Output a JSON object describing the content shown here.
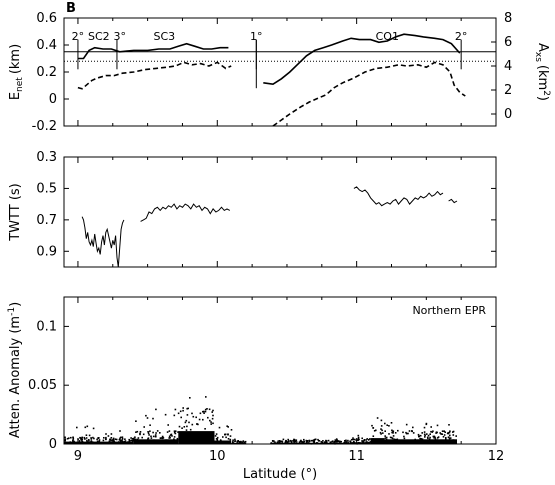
{
  "figure": {
    "panel_letter": "B",
    "xlabel": "Latitude (°)",
    "x_ticks": [
      "9",
      "10",
      "11",
      "12"
    ],
    "xlim": [
      8.9,
      12.0
    ]
  },
  "chart_data": [
    {
      "type": "line",
      "panel": "top",
      "ylabel_left_main": "E",
      "ylabel_left_sub": "net",
      "ylabel_left_unit": "(km)",
      "ylabel_right_main": "A",
      "ylabel_right_sub": "xs",
      "ylabel_right_unit": "(km",
      "ylabel_right_sup": "2",
      "ylabel_right_close": ")",
      "ylim_left": [
        -0.2,
        0.6
      ],
      "ylim_right": [
        -1,
        8
      ],
      "yticks_left": [
        "0.6",
        "0.4",
        "0.2",
        "0",
        "-0.2"
      ],
      "yticks_right": [
        "8",
        "6",
        "4",
        "2",
        "0"
      ],
      "reference_solid_left": 0.35,
      "reference_dotted_left": 0.28,
      "annotations": [
        {
          "text": "2°",
          "lat": 9.0
        },
        {
          "text": "SC2",
          "lat": 9.15
        },
        {
          "text": "3°",
          "lat": 9.3
        },
        {
          "text": "SC3",
          "lat": 9.62
        },
        {
          "text": "1°",
          "lat": 10.28
        },
        {
          "text": "CO1",
          "lat": 11.22
        },
        {
          "text": "2°",
          "lat": 11.75
        }
      ],
      "discontinuities": [
        9.0,
        9.28,
        10.28,
        11.75
      ],
      "series": [
        {
          "axis": "left",
          "style": "solid",
          "segments": [
            {
              "x": [
                9.0,
                9.04,
                9.08,
                9.12,
                9.18,
                9.24,
                9.3,
                9.4,
                9.5,
                9.58,
                9.66,
                9.72,
                9.78,
                9.84,
                9.9,
                9.96,
                10.02,
                10.08
              ],
              "y": [
                0.3,
                0.3,
                0.36,
                0.38,
                0.37,
                0.37,
                0.35,
                0.36,
                0.36,
                0.37,
                0.37,
                0.39,
                0.41,
                0.39,
                0.37,
                0.37,
                0.38,
                0.38
              ]
            },
            {
              "x": [
                10.33,
                10.4,
                10.46,
                10.52,
                10.58,
                10.64,
                10.7,
                10.76,
                10.82,
                10.9,
                10.96,
                11.02,
                11.1,
                11.16,
                11.22,
                11.28,
                11.34,
                11.42,
                11.48,
                11.56,
                11.62,
                11.68,
                11.74
              ],
              "y": [
                0.12,
                0.11,
                0.15,
                0.2,
                0.26,
                0.32,
                0.36,
                0.38,
                0.4,
                0.43,
                0.45,
                0.44,
                0.44,
                0.42,
                0.43,
                0.46,
                0.48,
                0.47,
                0.46,
                0.45,
                0.44,
                0.41,
                0.34
              ]
            }
          ]
        },
        {
          "axis": "right",
          "style": "dashed",
          "segments": [
            {
              "x": [
                9.0,
                9.03,
                9.06,
                9.1,
                9.14,
                9.2,
                9.26,
                9.32,
                9.4,
                9.48,
                9.56,
                9.64,
                9.7,
                9.76,
                9.82,
                9.88,
                9.94,
                10.0,
                10.06,
                10.1
              ],
              "y": [
                2.2,
                2.1,
                2.4,
                2.8,
                3.0,
                3.2,
                3.2,
                3.4,
                3.5,
                3.7,
                3.8,
                3.9,
                4.0,
                4.3,
                4.1,
                4.2,
                4.0,
                4.3,
                3.8,
                4.0
              ]
            },
            {
              "x": [
                10.4,
                10.46,
                10.52,
                10.6,
                10.66,
                10.72,
                10.78,
                10.84,
                10.9,
                10.98,
                11.06,
                11.14,
                11.22,
                11.3,
                11.36,
                11.44,
                11.5,
                11.56,
                11.62,
                11.67,
                11.7,
                11.74,
                11.78
              ],
              "y": [
                -1.0,
                -0.5,
                0.0,
                0.6,
                1.0,
                1.3,
                1.6,
                2.2,
                2.6,
                3.0,
                3.5,
                3.8,
                3.9,
                4.1,
                4.0,
                4.1,
                3.9,
                4.3,
                4.1,
                3.5,
                2.4,
                1.8,
                1.5
              ]
            }
          ]
        }
      ]
    },
    {
      "type": "line",
      "panel": "middle",
      "ylabel": "TWTT (s)",
      "ylim": [
        0.3,
        1.0
      ],
      "inverted": true,
      "yticks": [
        "0.3",
        "0.5",
        "0.7",
        "0.9"
      ],
      "series": [
        {
          "segments": [
            {
              "x": [
                9.03,
                9.04,
                9.05,
                9.06,
                9.07,
                9.08,
                9.09,
                9.1,
                9.11,
                9.12,
                9.13,
                9.14,
                9.15,
                9.16,
                9.17,
                9.18,
                9.19,
                9.2,
                9.21,
                9.22,
                9.23,
                9.24,
                9.25,
                9.26,
                9.27,
                9.28,
                9.29,
                9.3,
                9.31,
                9.32,
                9.33
              ],
              "y": [
                0.68,
                0.7,
                0.75,
                0.82,
                0.78,
                0.84,
                0.86,
                0.83,
                0.87,
                0.79,
                0.85,
                0.9,
                0.88,
                0.92,
                0.84,
                0.8,
                0.86,
                0.78,
                0.76,
                0.8,
                0.84,
                0.88,
                0.83,
                0.86,
                0.8,
                0.94,
                1.0,
                0.88,
                0.76,
                0.72,
                0.7
              ]
            },
            {
              "x": [
                9.45,
                9.47,
                9.49,
                9.51,
                9.53,
                9.55,
                9.57,
                9.59,
                9.61,
                9.63,
                9.65,
                9.67,
                9.69,
                9.71,
                9.73,
                9.75,
                9.77,
                9.79,
                9.81,
                9.83,
                9.85,
                9.87,
                9.89,
                9.91,
                9.93,
                9.95,
                9.97,
                9.99,
                10.01,
                10.03,
                10.05,
                10.07,
                10.09
              ],
              "y": [
                0.71,
                0.7,
                0.69,
                0.65,
                0.66,
                0.63,
                0.62,
                0.64,
                0.62,
                0.63,
                0.61,
                0.62,
                0.6,
                0.63,
                0.61,
                0.62,
                0.6,
                0.61,
                0.63,
                0.6,
                0.62,
                0.61,
                0.64,
                0.62,
                0.63,
                0.66,
                0.63,
                0.65,
                0.64,
                0.62,
                0.64,
                0.63,
                0.64
              ]
            },
            {
              "x": [
                10.98,
                11.0,
                11.02,
                11.04,
                11.06,
                11.08,
                11.1,
                11.12,
                11.14,
                11.16,
                11.18,
                11.2,
                11.22,
                11.24,
                11.26,
                11.28,
                11.3,
                11.32,
                11.34,
                11.36,
                11.38,
                11.4,
                11.42,
                11.44,
                11.46,
                11.48,
                11.5,
                11.52,
                11.54,
                11.56,
                11.58,
                11.6,
                11.62
              ],
              "y": [
                0.5,
                0.49,
                0.51,
                0.52,
                0.51,
                0.53,
                0.56,
                0.58,
                0.6,
                0.59,
                0.61,
                0.6,
                0.59,
                0.6,
                0.58,
                0.57,
                0.6,
                0.58,
                0.56,
                0.57,
                0.6,
                0.58,
                0.56,
                0.57,
                0.55,
                0.56,
                0.55,
                0.53,
                0.55,
                0.54,
                0.52,
                0.54,
                0.53
              ]
            },
            {
              "x": [
                11.66,
                11.68,
                11.7,
                11.72
              ],
              "y": [
                0.58,
                0.57,
                0.59,
                0.58
              ]
            }
          ]
        }
      ]
    },
    {
      "type": "scatter",
      "panel": "bottom",
      "ylabel": "Atten. Anomaly (m",
      "ylabel_sup": "-1",
      "ylabel_close": ")",
      "ylim": [
        0,
        0.125
      ],
      "yticks": [
        "0.1",
        "0.05",
        "0"
      ],
      "annotation": "Northern EPR",
      "clusters": [
        {
          "x_range": [
            8.9,
            9.4
          ],
          "typical": 0.004,
          "max": 0.018
        },
        {
          "x_range": [
            9.4,
            9.72
          ],
          "typical": 0.008,
          "max": 0.03
        },
        {
          "x_range": [
            9.72,
            9.98
          ],
          "typical": 0.022,
          "max": 0.058
        },
        {
          "x_range": [
            9.98,
            10.1
          ],
          "typical": 0.006,
          "max": 0.016
        },
        {
          "x_range": [
            10.1,
            10.2
          ],
          "typical": 0.002,
          "max": 0.005
        },
        {
          "x_range": [
            10.38,
            10.95
          ],
          "typical": 0.002,
          "max": 0.004
        },
        {
          "x_range": [
            10.95,
            11.1
          ],
          "typical": 0.003,
          "max": 0.008
        },
        {
          "x_range": [
            11.1,
            11.2
          ],
          "typical": 0.01,
          "max": 0.025
        },
        {
          "x_range": [
            11.2,
            11.72
          ],
          "typical": 0.008,
          "max": 0.018
        }
      ]
    }
  ]
}
